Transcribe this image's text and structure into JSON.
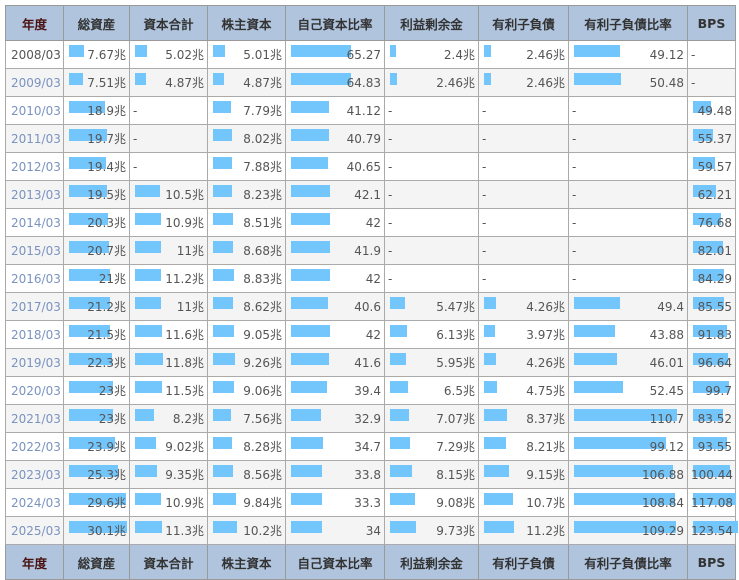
{
  "headers": [
    "年度",
    "総資産",
    "資本合計",
    "株主資本",
    "自己資本比率",
    "利益剰余金",
    "有利子負債",
    "有利子負債比率",
    "BPS"
  ],
  "bar_color": "#72c6fb",
  "header_bg": "#b0c4de",
  "rows": [
    [
      "2008/03",
      "7.67兆",
      "5.02兆",
      "5.01兆",
      "65.27",
      "2.4兆",
      "2.46兆",
      "49.12",
      "-"
    ],
    [
      "2009/03",
      "7.51兆",
      "4.87兆",
      "4.87兆",
      "64.83",
      "2.46兆",
      "2.46兆",
      "50.48",
      "-"
    ],
    [
      "2010/03",
      "18.9兆",
      "-",
      "7.79兆",
      "41.12",
      "-",
      "-",
      "-",
      "49.48"
    ],
    [
      "2011/03",
      "19.7兆",
      "-",
      "8.02兆",
      "40.79",
      "-",
      "-",
      "-",
      "55.37"
    ],
    [
      "2012/03",
      "19.4兆",
      "-",
      "7.88兆",
      "40.65",
      "-",
      "-",
      "-",
      "59.57"
    ],
    [
      "2013/03",
      "19.5兆",
      "10.5兆",
      "8.23兆",
      "42.1",
      "-",
      "-",
      "-",
      "62.21"
    ],
    [
      "2014/03",
      "20.3兆",
      "10.9兆",
      "8.51兆",
      "42",
      "-",
      "-",
      "-",
      "76.68"
    ],
    [
      "2015/03",
      "20.7兆",
      "11兆",
      "8.68兆",
      "41.9",
      "-",
      "-",
      "-",
      "82.01"
    ],
    [
      "2016/03",
      "21兆",
      "11.2兆",
      "8.83兆",
      "42",
      "-",
      "-",
      "-",
      "84.29"
    ],
    [
      "2017/03",
      "21.2兆",
      "11兆",
      "8.62兆",
      "40.6",
      "5.47兆",
      "4.26兆",
      "49.4",
      "85.55"
    ],
    [
      "2018/03",
      "21.5兆",
      "11.6兆",
      "9.05兆",
      "42",
      "6.13兆",
      "3.97兆",
      "43.88",
      "91.83"
    ],
    [
      "2019/03",
      "22.3兆",
      "11.8兆",
      "9.26兆",
      "41.6",
      "5.95兆",
      "4.26兆",
      "46.01",
      "96.64"
    ],
    [
      "2020/03",
      "23兆",
      "11.5兆",
      "9.06兆",
      "39.4",
      "6.5兆",
      "4.75兆",
      "52.45",
      "99.7"
    ],
    [
      "2021/03",
      "23兆",
      "8.2兆",
      "7.56兆",
      "32.9",
      "7.07兆",
      "8.37兆",
      "110.7",
      "83.52"
    ],
    [
      "2022/03",
      "23.9兆",
      "9.02兆",
      "8.28兆",
      "34.7",
      "7.29兆",
      "8.21兆",
      "99.12",
      "93.55"
    ],
    [
      "2023/03",
      "25.3兆",
      "9.35兆",
      "8.56兆",
      "33.8",
      "8.15兆",
      "9.15兆",
      "106.88",
      "100.44"
    ],
    [
      "2024/03",
      "29.6兆",
      "10.9兆",
      "9.84兆",
      "33.3",
      "9.08兆",
      "10.7兆",
      "108.84",
      "117.08"
    ],
    [
      "2025/03",
      "30.1兆",
      "11.3兆",
      "10.2兆",
      "34",
      "9.73兆",
      "11.2兆",
      "109.29",
      "123.54"
    ]
  ]
}
